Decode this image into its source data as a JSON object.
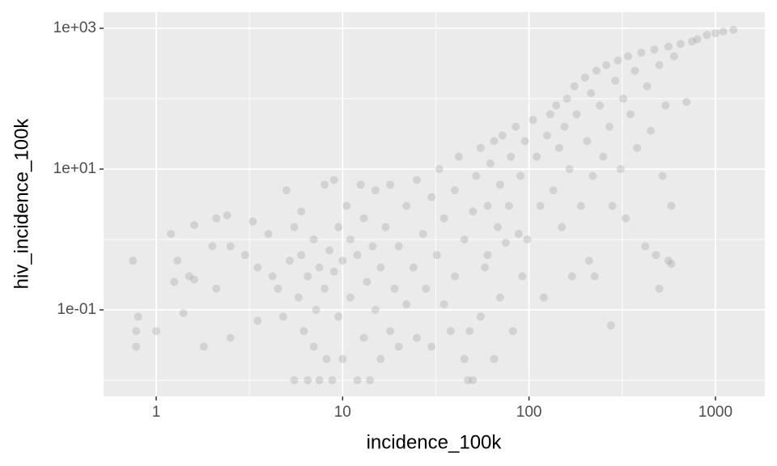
{
  "chart_data": {
    "type": "scatter",
    "x_label": "incidence_100k",
    "y_label": "hiv_incidence_100k",
    "log_x": true,
    "log_y": true,
    "grid": true,
    "color": "#999999",
    "opacity": 0.3,
    "xlim": [
      0.522,
      1842
    ],
    "ylim": [
      0.00589,
      1698
    ],
    "xticks": [
      1,
      10,
      100,
      1000
    ],
    "yticks": [
      {
        "value": 0.1,
        "label": "1e-01"
      },
      {
        "value": 10,
        "label": "1e+01"
      },
      {
        "value": 1000,
        "label": "1e+03"
      }
    ],
    "x": [
      0.75,
      0.78,
      0.8,
      0.78,
      1.0,
      1.2,
      1.25,
      1.3,
      1.4,
      1.5,
      1.6,
      1.6,
      1.8,
      2,
      2.1,
      2.1,
      2.4,
      2.5,
      2.5,
      3,
      3.3,
      3.5,
      3.5,
      4,
      4.2,
      4.5,
      4.8,
      5,
      5.2,
      5.5,
      5.5,
      5.8,
      6,
      6,
      6.2,
      6.5,
      6.5,
      7,
      7,
      7.2,
      7.5,
      7.5,
      8,
      8,
      8.2,
      8.5,
      8.8,
      9,
      9,
      9.5,
      9.5,
      10,
      10,
      10.5,
      11,
      11,
      12,
      12,
      12.5,
      13,
      13,
      13.5,
      14,
      14.5,
      15,
      15,
      16,
      16,
      17,
      18,
      18,
      19,
      20,
      20,
      22,
      22,
      24,
      25,
      25,
      27,
      28,
      30,
      30,
      32,
      33,
      35,
      35,
      38,
      40,
      40,
      42,
      45,
      45,
      47,
      48,
      50,
      50,
      52,
      55,
      55,
      58,
      60,
      60,
      62,
      65,
      65,
      68,
      70,
      70,
      72,
      75,
      78,
      80,
      82,
      85,
      88,
      90,
      92,
      95,
      98,
      105,
      110,
      115,
      120,
      125,
      130,
      135,
      140,
      145,
      150,
      155,
      160,
      165,
      170,
      175,
      180,
      190,
      200,
      205,
      210,
      215,
      220,
      225,
      230,
      240,
      250,
      260,
      270,
      275,
      280,
      290,
      300,
      310,
      320,
      330,
      340,
      350,
      370,
      380,
      400,
      420,
      430,
      450,
      470,
      480,
      500,
      500,
      520,
      540,
      560,
      580,
      600,
      650,
      700,
      750,
      800,
      900,
      1000,
      1100,
      1250,
      580,
      560
    ],
    "values": [
      0.5,
      0.03,
      0.08,
      0.05,
      0.05,
      1.2,
      0.25,
      0.5,
      0.09,
      0.3,
      1.6,
      0.27,
      0.03,
      0.8,
      0.2,
      2,
      2.2,
      0.04,
      0.8,
      0.6,
      1.8,
      0.4,
      0.07,
      1.2,
      0.3,
      0.2,
      0.08,
      5,
      0.5,
      1.5,
      0.01,
      0.15,
      0.6,
      2.5,
      0.05,
      0.01,
      0.3,
      1,
      0.03,
      0.1,
      0.4,
      0.01,
      6,
      0.2,
      0.02,
      0.7,
      0.01,
      7,
      0.35,
      1.5,
      0.08,
      0.5,
      0.02,
      3,
      0.15,
      1,
      0.01,
      0.6,
      6,
      0.04,
      2,
      0.25,
      0.01,
      0.8,
      0.1,
      5,
      0.4,
      0.02,
      1.5,
      0.05,
      6,
      0.2,
      0.8,
      0.03,
      3,
      0.12,
      0.4,
      7,
      0.04,
      1.2,
      0.2,
      4,
      0.03,
      0.6,
      10,
      2,
      0.12,
      0.05,
      5,
      0.3,
      15,
      1,
      0.02,
      0.01,
      0.05,
      2.5,
      0.01,
      8,
      0.08,
      20,
      0.4,
      3,
      0.6,
      12,
      25,
      0.02,
      1.5,
      6,
      0.15,
      30,
      0.9,
      3,
      15,
      0.05,
      40,
      1.2,
      8,
      0.3,
      25,
      1,
      50,
      15,
      3,
      0.15,
      30,
      60,
      5,
      80,
      20,
      1.5,
      40,
      100,
      10,
      0.3,
      150,
      60,
      3,
      200,
      25,
      0.5,
      120,
      8,
      0.3,
      250,
      80,
      15,
      300,
      40,
      0.06,
      3,
      180,
      350,
      10,
      100,
      2,
      400,
      60,
      250,
      20,
      450,
      0.8,
      150,
      35,
      500,
      0.6,
      0.2,
      300,
      8,
      80,
      550,
      0.45,
      400,
      600,
      90,
      650,
      700,
      800,
      850,
      900,
      950,
      3,
      0.5
    ]
  }
}
